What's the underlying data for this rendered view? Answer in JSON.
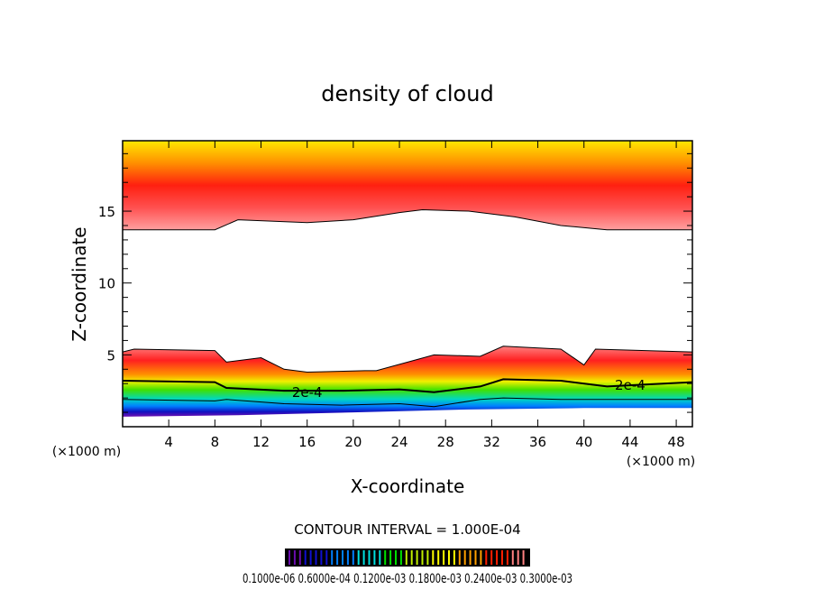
{
  "chart_data": {
    "type": "heatmap",
    "title": "density of cloud",
    "xlabel": "X-coordinate",
    "ylabel": "Z-coordinate",
    "x_unit_left": "(×1000 m)",
    "x_unit_right": "(×1000 m)",
    "xlim": [
      0,
      49.4
    ],
    "ylim": [
      0,
      19.9
    ],
    "xticks": [
      4,
      8,
      12,
      16,
      20,
      24,
      28,
      32,
      36,
      40,
      44,
      48
    ],
    "yticks": [
      5,
      10,
      15
    ],
    "contour_interval_text": "CONTOUR INTERVAL = 1.000E-04",
    "contour_labels": [
      {
        "text": "2e-4",
        "x": 16,
        "z": 2.4
      },
      {
        "text": "2e-4",
        "x": 44,
        "z": 2.9
      }
    ],
    "upper_layer_base": {
      "x": [
        0,
        8,
        10,
        16,
        20,
        24,
        26,
        30,
        34,
        38,
        42,
        49.4
      ],
      "z": [
        13.7,
        13.7,
        14.4,
        14.2,
        14.4,
        14.9,
        15.1,
        15.0,
        14.6,
        14.0,
        13.7,
        13.7
      ]
    },
    "lower_layer_top": {
      "x": [
        0,
        1,
        8,
        9,
        12,
        14,
        16,
        21,
        22,
        27,
        31,
        33,
        38,
        40,
        41,
        49.4
      ],
      "z": [
        5.2,
        5.4,
        5.3,
        4.5,
        4.8,
        4.0,
        3.8,
        3.9,
        3.9,
        5.0,
        4.9,
        5.6,
        5.4,
        4.3,
        5.4,
        5.2
      ]
    },
    "lower_layer_base": {
      "x": [
        0,
        10,
        20,
        30,
        40,
        49.4
      ],
      "z": [
        0.7,
        0.8,
        1.0,
        1.2,
        1.3,
        1.3
      ]
    },
    "colorbar_labels_text": "0.1000e-06 0.6000e-04 0.1200e-03 0.1800e-03 0.2400e-03 0.3000e-03",
    "colorbar_colors": [
      "#6a0dad",
      "#1010d0",
      "#0080ff",
      "#00e0e0",
      "#00e000",
      "#c0f000",
      "#ffff00",
      "#ffa000",
      "#ff2000",
      "#ff8080"
    ]
  }
}
